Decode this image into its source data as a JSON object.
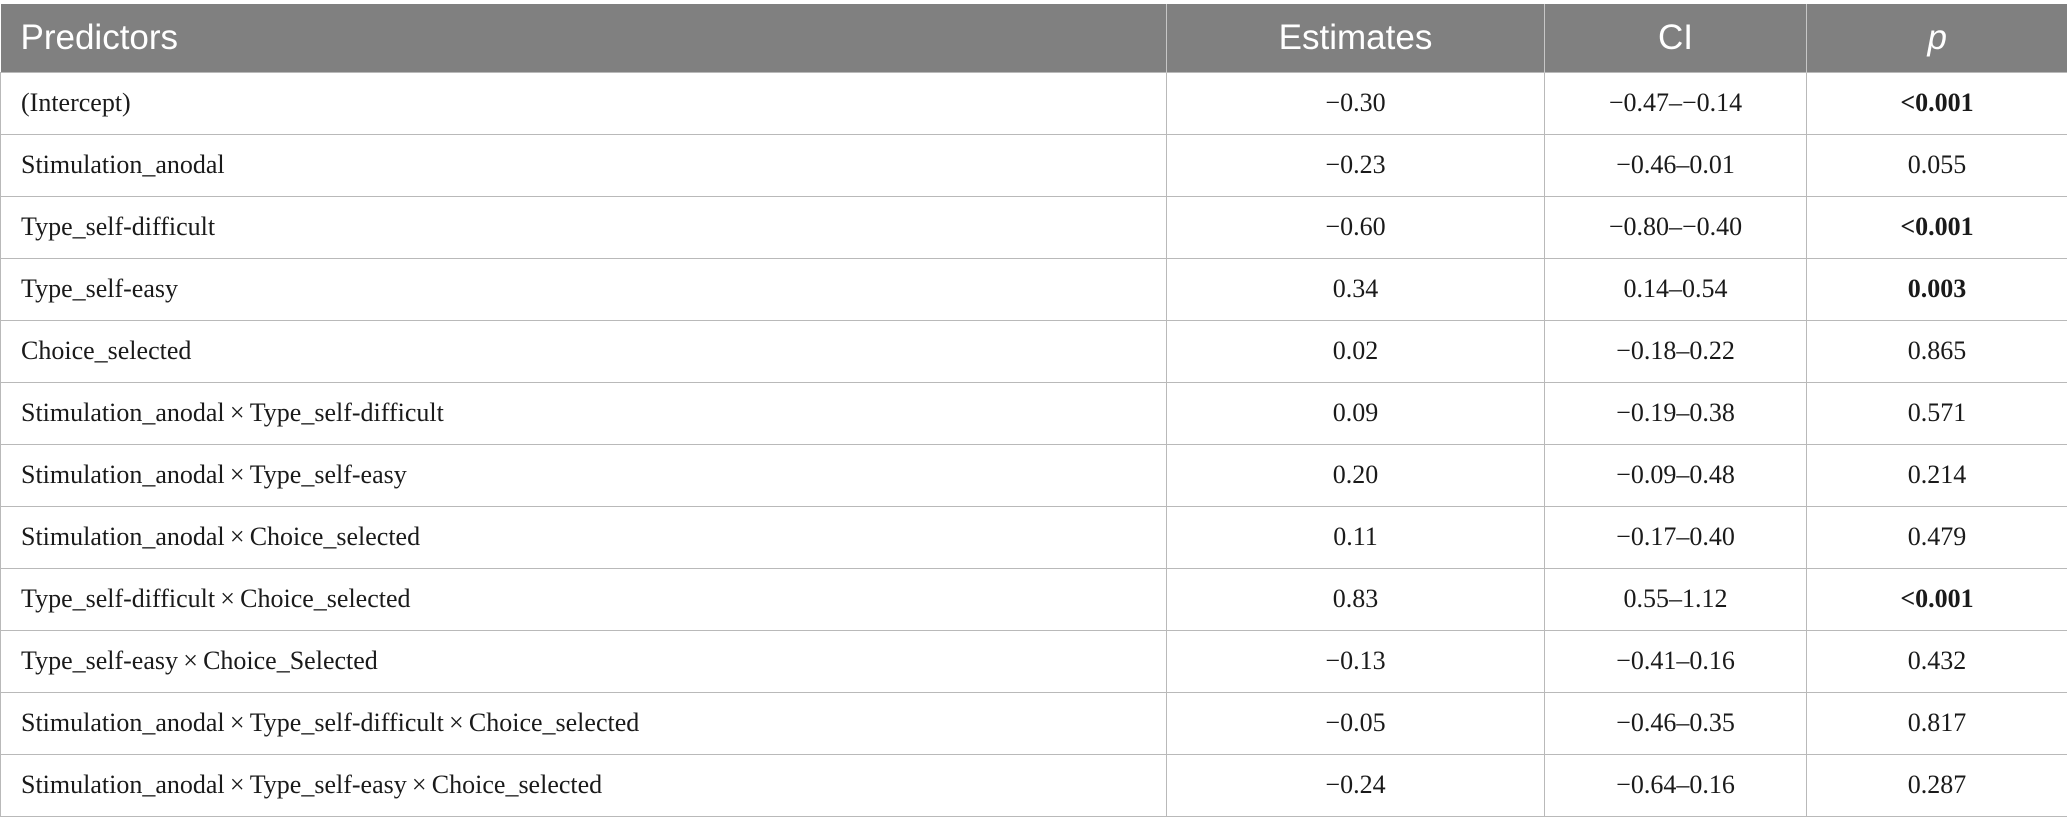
{
  "table": {
    "headers": [
      "Predictors",
      "Estimates",
      "CI",
      "p"
    ],
    "rows": [
      {
        "predictor": "(Intercept)",
        "estimate": "−0.30",
        "ci": "−0.47–−0.14",
        "p": "<0.001",
        "p_bold": true
      },
      {
        "predictor": "Stimulation_anodal",
        "estimate": "−0.23",
        "ci": "−0.46–0.01",
        "p": "0.055",
        "p_bold": false
      },
      {
        "predictor": "Type_self-difficult",
        "estimate": "−0.60",
        "ci": "−0.80–−0.40",
        "p": "<0.001",
        "p_bold": true
      },
      {
        "predictor": "Type_self-easy",
        "estimate": "0.34",
        "ci": "0.14–0.54",
        "p": "0.003",
        "p_bold": true
      },
      {
        "predictor": "Choice_selected",
        "estimate": "0.02",
        "ci": "−0.18–0.22",
        "p": "0.865",
        "p_bold": false
      },
      {
        "predictor": "Stimulation_anodal × Type_self-difficult",
        "estimate": "0.09",
        "ci": "−0.19–0.38",
        "p": "0.571",
        "p_bold": false
      },
      {
        "predictor": "Stimulation_anodal × Type_self-easy",
        "estimate": "0.20",
        "ci": "−0.09–0.48",
        "p": "0.214",
        "p_bold": false
      },
      {
        "predictor": "Stimulation_anodal × Choice_selected",
        "estimate": "0.11",
        "ci": "−0.17–0.40",
        "p": "0.479",
        "p_bold": false
      },
      {
        "predictor": "Type_self-difficult × Choice_selected",
        "estimate": "0.83",
        "ci": "0.55–1.12",
        "p": "<0.001",
        "p_bold": true
      },
      {
        "predictor": "Type_self-easy × Choice_Selected",
        "estimate": "−0.13",
        "ci": "−0.41–0.16",
        "p": "0.432",
        "p_bold": false
      },
      {
        "predictor": "Stimulation_anodal × Type_self-difficult × Choice_selected",
        "estimate": "−0.05",
        "ci": "−0.46–0.35",
        "p": "0.817",
        "p_bold": false
      },
      {
        "predictor": "Stimulation_anodal × Type_self-easy × Choice_selected",
        "estimate": "−0.24",
        "ci": "−0.64–0.16",
        "p": "0.287",
        "p_bold": false
      }
    ]
  }
}
